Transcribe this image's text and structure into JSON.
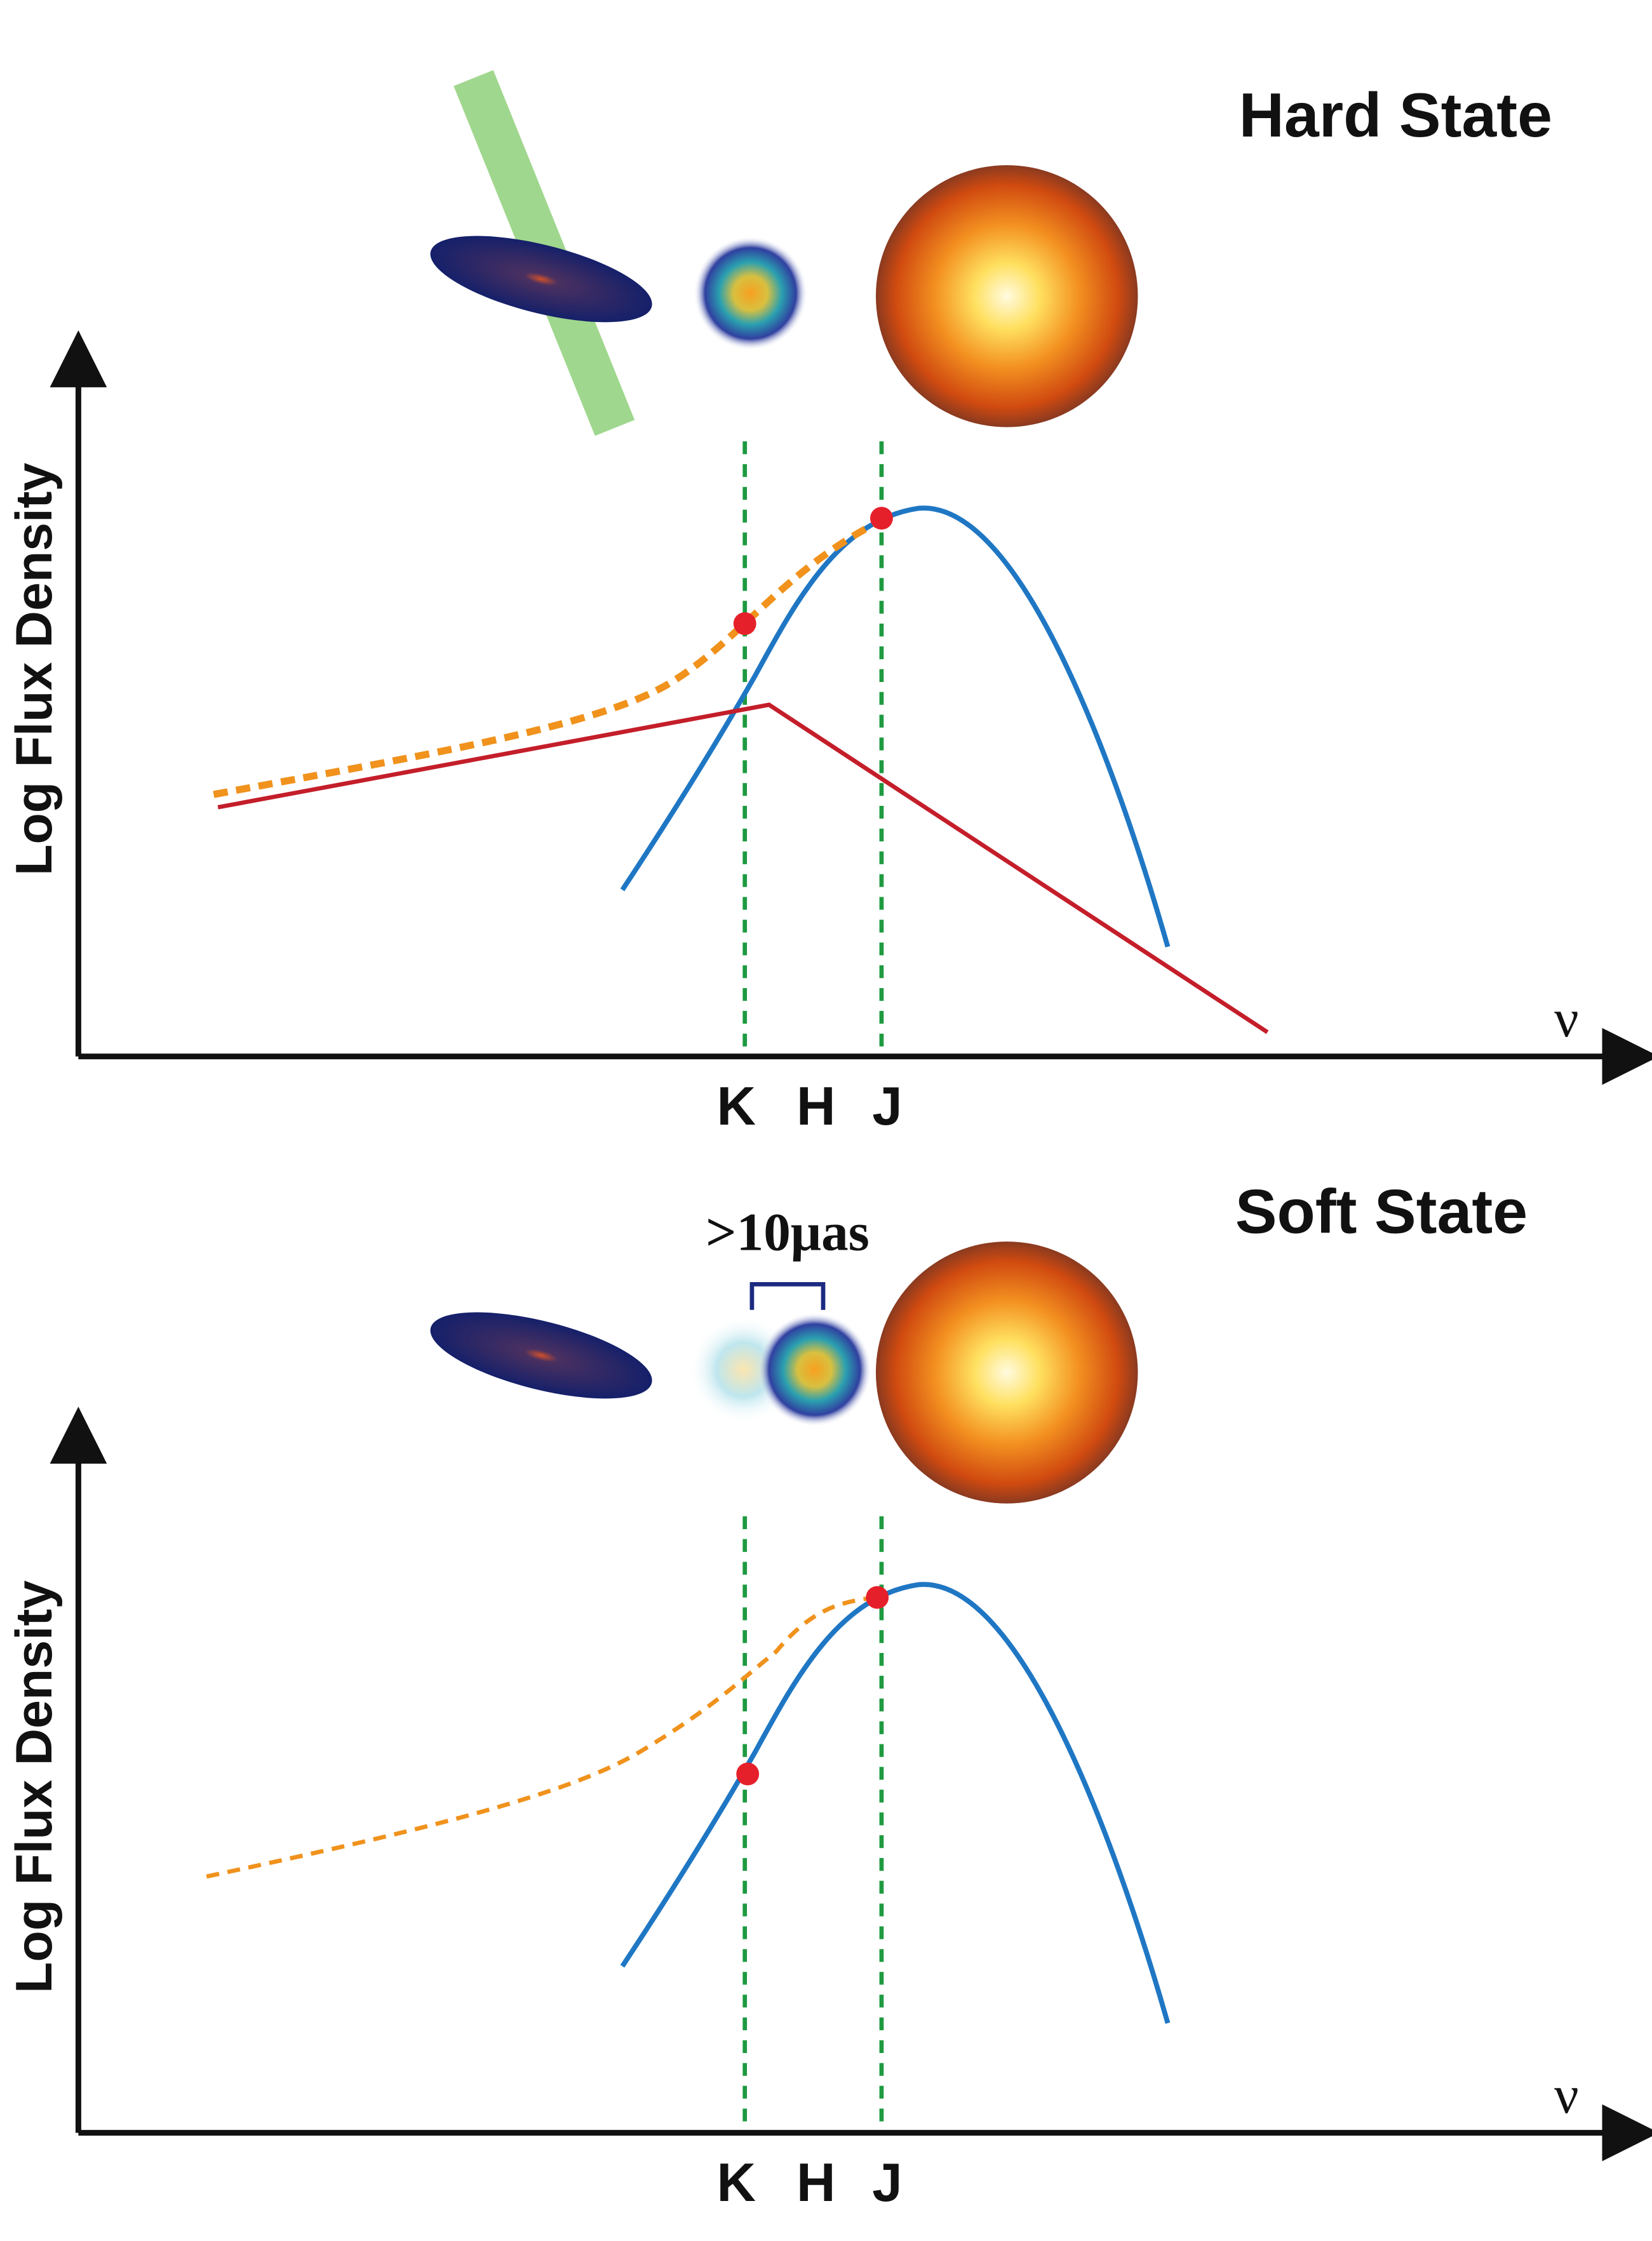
{
  "panels": [
    {
      "title": "Hard State",
      "y_label": "Log Flux Density",
      "x_label": "ν",
      "bands": [
        "K",
        "H",
        "J"
      ]
    },
    {
      "title": "Soft State",
      "annotation": ">10μas",
      "y_label": "Log Flux Density",
      "x_label": "ν",
      "bands": [
        "K",
        "H",
        "J"
      ]
    }
  ]
}
